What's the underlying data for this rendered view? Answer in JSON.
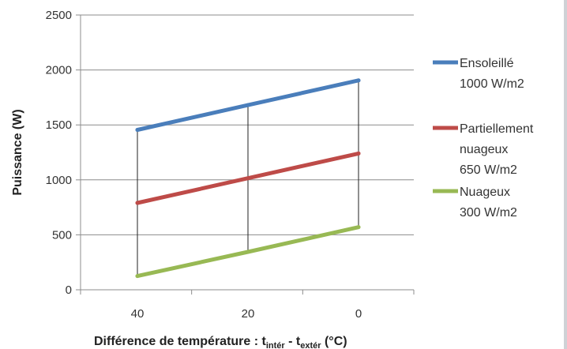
{
  "chart_data": {
    "type": "line",
    "x": [
      40,
      20,
      0
    ],
    "x_tick_labels": [
      "40",
      "20",
      "0"
    ],
    "xlabel_main": "Différence de température : t",
    "xlabel_sub1": "intér",
    "xlabel_mid": " - t",
    "xlabel_sub2": "extér",
    "xlabel_end": "  (°C)",
    "ylabel": "Puissance  (W)",
    "ylim": [
      0,
      2500
    ],
    "y_ticks": [
      0,
      500,
      1000,
      1500,
      2000,
      2500
    ],
    "y_tick_labels": [
      "0",
      "500",
      "1000",
      "1500",
      "2000",
      "2500"
    ],
    "grid": true,
    "drop_lines": true,
    "legend_position": "right",
    "series": [
      {
        "legend_lines": [
          "Ensoleillé",
          "1000 W/m2"
        ],
        "color": "#4a7ebb",
        "values": [
          1455,
          1680,
          1905
        ]
      },
      {
        "legend_lines": [
          "Partiellement",
          "nuageux",
          "650 W/m2"
        ],
        "color": "#be4b48",
        "values": [
          790,
          1015,
          1240
        ]
      },
      {
        "legend_lines": [
          "Nuageux",
          "300 W/m2"
        ],
        "color": "#98b954",
        "values": [
          125,
          345,
          570
        ]
      }
    ]
  }
}
